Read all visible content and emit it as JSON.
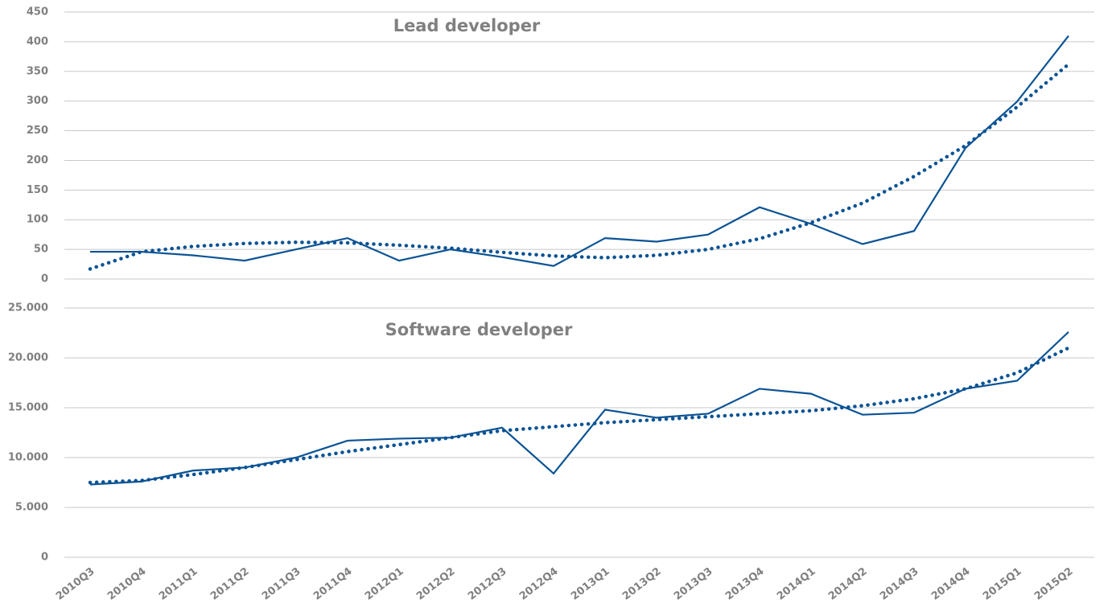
{
  "chart_data": [
    {
      "type": "line",
      "title": "Lead developer",
      "series": [
        {
          "color": "#0b5394",
          "line_style": "solid",
          "values": [
            46,
            46,
            40,
            31,
            50,
            69,
            31,
            50,
            37,
            22,
            69,
            63,
            75,
            121,
            93,
            59,
            81,
            221,
            299,
            410
          ]
        },
        {
          "color": "#0b5394",
          "line_style": "dotted",
          "values": [
            17,
            46,
            55,
            60,
            62,
            61,
            57,
            52,
            45,
            39,
            36,
            40,
            50,
            68,
            95,
            128,
            173,
            225,
            290,
            362
          ]
        }
      ],
      "ylim": [
        0,
        450
      ],
      "yticks": [
        0,
        50,
        100,
        150,
        200,
        250,
        300,
        350,
        400,
        450
      ],
      "grid": true
    },
    {
      "type": "line",
      "title": "Software developer",
      "categories": [
        "2010Q3",
        "2010Q4",
        "2011Q1",
        "2011Q2",
        "2011Q3",
        "2011Q4",
        "2012Q1",
        "2012Q2",
        "2012Q3",
        "2012Q4",
        "2013Q1",
        "2013Q2",
        "2013Q3",
        "2013Q4",
        "2014Q1",
        "2014Q2",
        "2014Q3",
        "2014Q4",
        "2015Q1",
        "2015Q2"
      ],
      "series": [
        {
          "color": "#0b5394",
          "line_style": "solid",
          "values": [
            7300,
            7600,
            8700,
            9000,
            10000,
            11700,
            11900,
            12000,
            13000,
            8400,
            14800,
            14000,
            14400,
            16900,
            16400,
            14300,
            14500,
            16900,
            17700,
            22600
          ]
        },
        {
          "color": "#0b5394",
          "line_style": "dotted",
          "values": [
            7500,
            7700,
            8300,
            9000,
            9800,
            10600,
            11300,
            12000,
            12700,
            13100,
            13500,
            13800,
            14100,
            14400,
            14700,
            15200,
            15900,
            16900,
            18500,
            21000
          ]
        }
      ],
      "ylim": [
        0,
        25000
      ],
      "yticks": [
        0,
        {
          "value": 5000,
          "label": "5.000"
        },
        {
          "value": 10000,
          "label": "10.000"
        },
        {
          "value": 15000,
          "label": "15.000"
        },
        {
          "value": 20000,
          "label": "20.000"
        },
        {
          "value": 25000,
          "label": "25.000"
        }
      ],
      "grid": true
    }
  ]
}
